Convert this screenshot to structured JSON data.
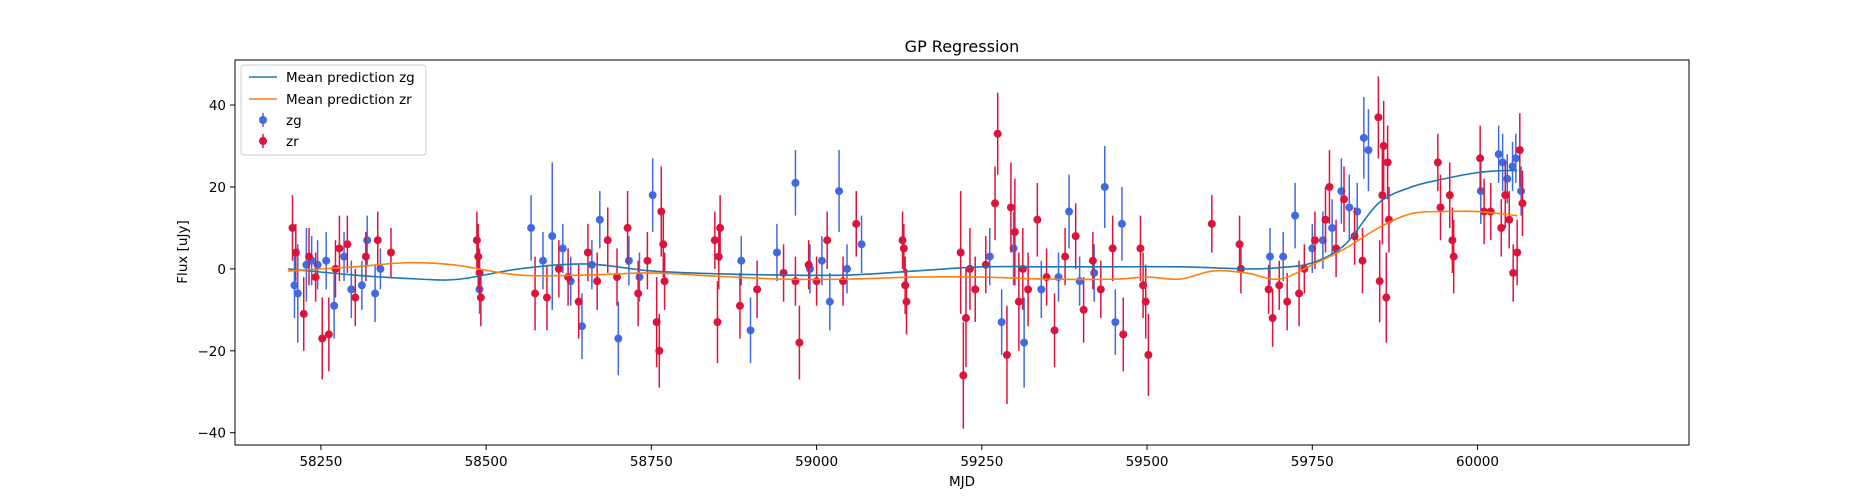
{
  "chart_data": {
    "type": "scatter",
    "title": "GP Regression",
    "xlabel": "MJD",
    "ylabel": "Flux [uJy]",
    "xlim": [
      58120,
      60320
    ],
    "ylim": [
      -43,
      51
    ],
    "xticks": [
      58250,
      58500,
      58750,
      59000,
      59250,
      59500,
      59750,
      60000
    ],
    "yticks": [
      -40,
      -20,
      0,
      20,
      40
    ],
    "grid": false,
    "legend_position": "top-left",
    "series": [
      {
        "name": "Mean prediction zg",
        "kind": "line",
        "color": "#1f77b4",
        "x": [
          58200,
          58300,
          58400,
          58460,
          58550,
          58650,
          58750,
          58850,
          58950,
          59050,
          59150,
          59250,
          59350,
          59450,
          59550,
          59650,
          59700,
          59750,
          59800,
          59850,
          59900,
          59950,
          60000,
          60040,
          60060
        ],
        "y": [
          0,
          -1.5,
          -2.5,
          -2.5,
          0,
          1.2,
          -0.5,
          -1.2,
          -1.5,
          -1.5,
          -0.5,
          0.5,
          0.5,
          0.5,
          0.5,
          0,
          0.3,
          1.5,
          6,
          16,
          20,
          22,
          23.5,
          24,
          24
        ]
      },
      {
        "name": "Mean prediction zr",
        "kind": "line",
        "color": "#ff7f0e",
        "x": [
          58200,
          58300,
          58380,
          58450,
          58550,
          58650,
          58750,
          58850,
          58950,
          59050,
          59150,
          59250,
          59350,
          59450,
          59500,
          59550,
          59600,
          59650,
          59700,
          59750,
          59800,
          59850,
          59900,
          59950,
          60000,
          60060
        ],
        "y": [
          -0.5,
          0.5,
          1.5,
          1,
          -1.5,
          -1.5,
          -1,
          -1.8,
          -2.5,
          -2.5,
          -2,
          -2,
          -2.5,
          -2.5,
          -2,
          -2.5,
          -0.5,
          -1,
          -2.5,
          1,
          5,
          10,
          13.5,
          14,
          14,
          13
        ]
      },
      {
        "name": "zg",
        "kind": "errorbar",
        "color": "#4169e1",
        "points": [
          {
            "x": 58210,
            "y": -4,
            "e": 8
          },
          {
            "x": 58215,
            "y": -6,
            "e": 12
          },
          {
            "x": 58228,
            "y": 1,
            "e": 9
          },
          {
            "x": 58236,
            "y": 2,
            "e": 6
          },
          {
            "x": 58245,
            "y": 1,
            "e": 6
          },
          {
            "x": 58258,
            "y": 2,
            "e": 7
          },
          {
            "x": 58270,
            "y": -9,
            "e": 8
          },
          {
            "x": 58285,
            "y": 3,
            "e": 6
          },
          {
            "x": 58296,
            "y": -5,
            "e": 7
          },
          {
            "x": 58312,
            "y": -4,
            "e": 6
          },
          {
            "x": 58320,
            "y": 7,
            "e": 6
          },
          {
            "x": 58332,
            "y": -6,
            "e": 7
          },
          {
            "x": 58340,
            "y": 0,
            "e": 5
          },
          {
            "x": 58490,
            "y": -5,
            "e": 6
          },
          {
            "x": 58568,
            "y": 10,
            "e": 8
          },
          {
            "x": 58586,
            "y": 2,
            "e": 7
          },
          {
            "x": 58600,
            "y": 8,
            "e": 18
          },
          {
            "x": 58616,
            "y": 5,
            "e": 6
          },
          {
            "x": 58628,
            "y": -3,
            "e": 6
          },
          {
            "x": 58645,
            "y": -14,
            "e": 8
          },
          {
            "x": 58660,
            "y": 1,
            "e": 6
          },
          {
            "x": 58672,
            "y": 12,
            "e": 7
          },
          {
            "x": 58700,
            "y": -17,
            "e": 9
          },
          {
            "x": 58716,
            "y": 2,
            "e": 6
          },
          {
            "x": 58732,
            "y": -2,
            "e": 6
          },
          {
            "x": 58752,
            "y": 18,
            "e": 9
          },
          {
            "x": 58886,
            "y": 2,
            "e": 6
          },
          {
            "x": 58900,
            "y": -15,
            "e": 8
          },
          {
            "x": 58940,
            "y": 4,
            "e": 7
          },
          {
            "x": 58968,
            "y": 21,
            "e": 8
          },
          {
            "x": 58990,
            "y": 0,
            "e": 6
          },
          {
            "x": 59008,
            "y": 2,
            "e": 6
          },
          {
            "x": 59020,
            "y": -8,
            "e": 7
          },
          {
            "x": 59034,
            "y": 19,
            "e": 10
          },
          {
            "x": 59046,
            "y": 0,
            "e": 6
          },
          {
            "x": 59068,
            "y": 6,
            "e": 7
          },
          {
            "x": 59262,
            "y": 3,
            "e": 7
          },
          {
            "x": 59280,
            "y": -13,
            "e": 8
          },
          {
            "x": 59298,
            "y": 5,
            "e": 9
          },
          {
            "x": 59314,
            "y": -18,
            "e": 11
          },
          {
            "x": 59340,
            "y": -5,
            "e": 7
          },
          {
            "x": 59366,
            "y": -2,
            "e": 6
          },
          {
            "x": 59382,
            "y": 14,
            "e": 9
          },
          {
            "x": 59398,
            "y": -3,
            "e": 6
          },
          {
            "x": 59420,
            "y": -1,
            "e": 7
          },
          {
            "x": 59436,
            "y": 20,
            "e": 10
          },
          {
            "x": 59452,
            "y": -13,
            "e": 8
          },
          {
            "x": 59462,
            "y": 11,
            "e": 9
          },
          {
            "x": 59686,
            "y": 3,
            "e": 7
          },
          {
            "x": 59706,
            "y": 3,
            "e": 6
          },
          {
            "x": 59724,
            "y": 13,
            "e": 8
          },
          {
            "x": 59750,
            "y": 5,
            "e": 6
          },
          {
            "x": 59766,
            "y": 7,
            "e": 7
          },
          {
            "x": 59780,
            "y": 10,
            "e": 7
          },
          {
            "x": 59794,
            "y": 19,
            "e": 8
          },
          {
            "x": 59806,
            "y": 15,
            "e": 8
          },
          {
            "x": 59818,
            "y": 14,
            "e": 7
          },
          {
            "x": 59828,
            "y": 32,
            "e": 10
          },
          {
            "x": 59835,
            "y": 29,
            "e": 10
          },
          {
            "x": 60005,
            "y": 19,
            "e": 8
          },
          {
            "x": 60032,
            "y": 28,
            "e": 7
          },
          {
            "x": 60038,
            "y": 26,
            "e": 7
          },
          {
            "x": 60045,
            "y": 22,
            "e": 6
          },
          {
            "x": 60053,
            "y": 25,
            "e": 6
          },
          {
            "x": 60058,
            "y": 27,
            "e": 6
          },
          {
            "x": 60066,
            "y": 19,
            "e": 6
          }
        ]
      },
      {
        "name": "zr",
        "kind": "errorbar",
        "color": "#dc143c",
        "points": [
          {
            "x": 58207,
            "y": 10,
            "e": 8
          },
          {
            "x": 58212,
            "y": 4,
            "e": 7
          },
          {
            "x": 58224,
            "y": -11,
            "e": 9
          },
          {
            "x": 58232,
            "y": 3,
            "e": 7
          },
          {
            "x": 58242,
            "y": -2,
            "e": 6
          },
          {
            "x": 58252,
            "y": -17,
            "e": 10
          },
          {
            "x": 58262,
            "y": -16,
            "e": 9
          },
          {
            "x": 58272,
            "y": 0,
            "e": 7
          },
          {
            "x": 58278,
            "y": 5,
            "e": 8
          },
          {
            "x": 58290,
            "y": 6,
            "e": 7
          },
          {
            "x": 58302,
            "y": -7,
            "e": 7
          },
          {
            "x": 58318,
            "y": 3,
            "e": 6
          },
          {
            "x": 58336,
            "y": 7,
            "e": 7
          },
          {
            "x": 58356,
            "y": 4,
            "e": 6
          },
          {
            "x": 58486,
            "y": 7,
            "e": 7
          },
          {
            "x": 58488,
            "y": 3,
            "e": 8
          },
          {
            "x": 58490,
            "y": -1,
            "e": 6
          },
          {
            "x": 58492,
            "y": -7,
            "e": 7
          },
          {
            "x": 58574,
            "y": -6,
            "e": 9
          },
          {
            "x": 58592,
            "y": -7,
            "e": 8
          },
          {
            "x": 58610,
            "y": 0,
            "e": 7
          },
          {
            "x": 58624,
            "y": -2,
            "e": 7
          },
          {
            "x": 58640,
            "y": -8,
            "e": 9
          },
          {
            "x": 58654,
            "y": 4,
            "e": 7
          },
          {
            "x": 58668,
            "y": -3,
            "e": 7
          },
          {
            "x": 58684,
            "y": 7,
            "e": 8
          },
          {
            "x": 58698,
            "y": -2,
            "e": 7
          },
          {
            "x": 58714,
            "y": 10,
            "e": 9
          },
          {
            "x": 58730,
            "y": -6,
            "e": 8
          },
          {
            "x": 58744,
            "y": 2,
            "e": 7
          },
          {
            "x": 58758,
            "y": -13,
            "e": 11
          },
          {
            "x": 58762,
            "y": -20,
            "e": 9
          },
          {
            "x": 58765,
            "y": 14,
            "e": 11
          },
          {
            "x": 58768,
            "y": 6,
            "e": 8
          },
          {
            "x": 58770,
            "y": -3,
            "e": 7
          },
          {
            "x": 58846,
            "y": 7,
            "e": 7
          },
          {
            "x": 58850,
            "y": -13,
            "e": 10
          },
          {
            "x": 58852,
            "y": 3,
            "e": 8
          },
          {
            "x": 58854,
            "y": 10,
            "e": 8
          },
          {
            "x": 58884,
            "y": -9,
            "e": 8
          },
          {
            "x": 58910,
            "y": -5,
            "e": 7
          },
          {
            "x": 58950,
            "y": -1,
            "e": 7
          },
          {
            "x": 58968,
            "y": -3,
            "e": 6
          },
          {
            "x": 58974,
            "y": -18,
            "e": 9
          },
          {
            "x": 58988,
            "y": 1,
            "e": 6
          },
          {
            "x": 59000,
            "y": -3,
            "e": 6
          },
          {
            "x": 59016,
            "y": 7,
            "e": 7
          },
          {
            "x": 59040,
            "y": -3,
            "e": 6
          },
          {
            "x": 59060,
            "y": 11,
            "e": 8
          },
          {
            "x": 59130,
            "y": 7,
            "e": 7
          },
          {
            "x": 59132,
            "y": 5,
            "e": 6
          },
          {
            "x": 59134,
            "y": -4,
            "e": 7
          },
          {
            "x": 59136,
            "y": -8,
            "e": 8
          },
          {
            "x": 59218,
            "y": 4,
            "e": 15
          },
          {
            "x": 59222,
            "y": -26,
            "e": 13
          },
          {
            "x": 59226,
            "y": -12,
            "e": 12
          },
          {
            "x": 59232,
            "y": 0,
            "e": 10
          },
          {
            "x": 59240,
            "y": -5,
            "e": 8
          },
          {
            "x": 59256,
            "y": 1,
            "e": 7
          },
          {
            "x": 59270,
            "y": 16,
            "e": 9
          },
          {
            "x": 59274,
            "y": 33,
            "e": 10
          },
          {
            "x": 59288,
            "y": -21,
            "e": 12
          },
          {
            "x": 59294,
            "y": 15,
            "e": 11
          },
          {
            "x": 59300,
            "y": 9,
            "e": 13
          },
          {
            "x": 59306,
            "y": -8,
            "e": 12
          },
          {
            "x": 59312,
            "y": 0,
            "e": 10
          },
          {
            "x": 59320,
            "y": -5,
            "e": 9
          },
          {
            "x": 59334,
            "y": 12,
            "e": 9
          },
          {
            "x": 59348,
            "y": -2,
            "e": 7
          },
          {
            "x": 59360,
            "y": -15,
            "e": 9
          },
          {
            "x": 59376,
            "y": 3,
            "e": 7
          },
          {
            "x": 59392,
            "y": 8,
            "e": 8
          },
          {
            "x": 59404,
            "y": -10,
            "e": 8
          },
          {
            "x": 59418,
            "y": 2,
            "e": 7
          },
          {
            "x": 59430,
            "y": -5,
            "e": 7
          },
          {
            "x": 59448,
            "y": 5,
            "e": 8
          },
          {
            "x": 59464,
            "y": -16,
            "e": 9
          },
          {
            "x": 59490,
            "y": 5,
            "e": 8
          },
          {
            "x": 59494,
            "y": -4,
            "e": 8
          },
          {
            "x": 59498,
            "y": -8,
            "e": 9
          },
          {
            "x": 59502,
            "y": -21,
            "e": 10
          },
          {
            "x": 59598,
            "y": 11,
            "e": 7
          },
          {
            "x": 59640,
            "y": 6,
            "e": 7
          },
          {
            "x": 59642,
            "y": 0,
            "e": 6
          },
          {
            "x": 59684,
            "y": -5,
            "e": 6
          },
          {
            "x": 59690,
            "y": -12,
            "e": 7
          },
          {
            "x": 59700,
            "y": -4,
            "e": 6
          },
          {
            "x": 59712,
            "y": -8,
            "e": 7
          },
          {
            "x": 59730,
            "y": -6,
            "e": 8
          },
          {
            "x": 59738,
            "y": 0,
            "e": 6
          },
          {
            "x": 59754,
            "y": 7,
            "e": 7
          },
          {
            "x": 59770,
            "y": 12,
            "e": 8
          },
          {
            "x": 59776,
            "y": 20,
            "e": 9
          },
          {
            "x": 59786,
            "y": 5,
            "e": 7
          },
          {
            "x": 59798,
            "y": 17,
            "e": 8
          },
          {
            "x": 59814,
            "y": 8,
            "e": 7
          },
          {
            "x": 59826,
            "y": 2,
            "e": 8
          },
          {
            "x": 59850,
            "y": 37,
            "e": 10
          },
          {
            "x": 59852,
            "y": -3,
            "e": 10
          },
          {
            "x": 59856,
            "y": 18,
            "e": 12
          },
          {
            "x": 59858,
            "y": 30,
            "e": 11
          },
          {
            "x": 59862,
            "y": -7,
            "e": 11
          },
          {
            "x": 59864,
            "y": 26,
            "e": 9
          },
          {
            "x": 59866,
            "y": 12,
            "e": 8
          },
          {
            "x": 59940,
            "y": 26,
            "e": 7
          },
          {
            "x": 59944,
            "y": 15,
            "e": 8
          },
          {
            "x": 59958,
            "y": 18,
            "e": 8
          },
          {
            "x": 59962,
            "y": 7,
            "e": 8
          },
          {
            "x": 59964,
            "y": 3,
            "e": 9
          },
          {
            "x": 60004,
            "y": 27,
            "e": 8
          },
          {
            "x": 60010,
            "y": 14,
            "e": 8
          },
          {
            "x": 60020,
            "y": 14,
            "e": 7
          },
          {
            "x": 60036,
            "y": 10,
            "e": 7
          },
          {
            "x": 60042,
            "y": 18,
            "e": 8
          },
          {
            "x": 60048,
            "y": 12,
            "e": 7
          },
          {
            "x": 60054,
            "y": -1,
            "e": 7
          },
          {
            "x": 60060,
            "y": 4,
            "e": 8
          },
          {
            "x": 60064,
            "y": 29,
            "e": 9
          },
          {
            "x": 60068,
            "y": 16,
            "e": 8
          }
        ]
      }
    ]
  }
}
